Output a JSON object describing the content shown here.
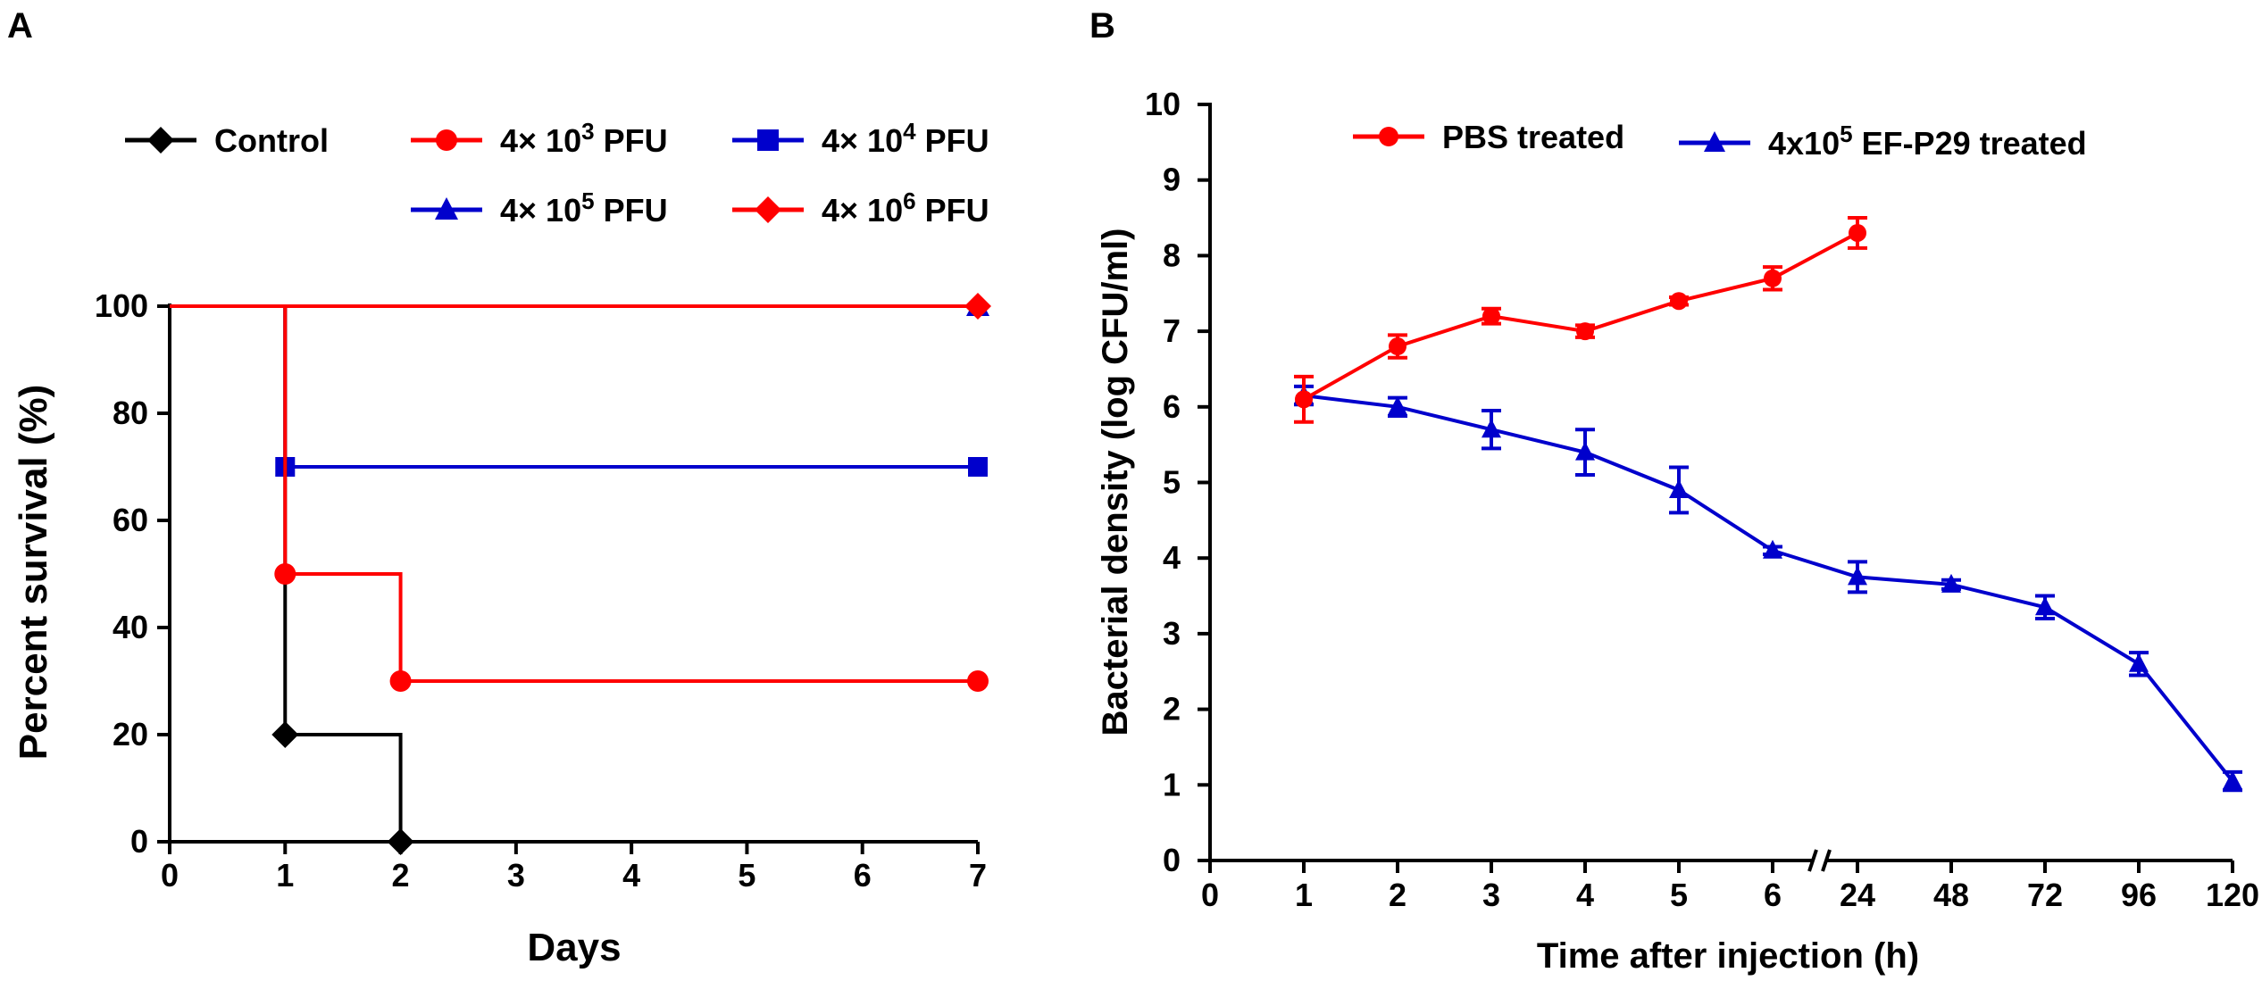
{
  "chart_data": [
    {
      "panel": "A",
      "type": "line",
      "subtype": "kaplan-meier-step",
      "xlabel": "Days",
      "ylabel": "Percent survival (%)",
      "xlim": [
        0,
        7
      ],
      "ylim": [
        0,
        100
      ],
      "x_ticks": [
        "0",
        "1",
        "2",
        "3",
        "4",
        "5",
        "6",
        "7"
      ],
      "y_ticks": [
        "0",
        "20",
        "40",
        "60",
        "80",
        "100"
      ],
      "legend_position": "top",
      "series": [
        {
          "name": "Control",
          "name_parts": [
            "Control",
            "",
            ""
          ],
          "color": "#000000",
          "marker": "diamond",
          "x": [
            0,
            1,
            2
          ],
          "y": [
            100,
            20,
            0
          ],
          "markers_at": [
            [
              1,
              20
            ],
            [
              2,
              0
            ]
          ]
        },
        {
          "name": "4× 10^3 PFU",
          "name_parts": [
            "4× 10",
            "3",
            " PFU"
          ],
          "color": "#ff0000",
          "marker": "circle",
          "x": [
            0,
            1,
            2,
            7
          ],
          "y": [
            100,
            50,
            30,
            30
          ],
          "markers_at": [
            [
              1,
              50
            ],
            [
              2,
              30
            ],
            [
              7,
              30
            ]
          ]
        },
        {
          "name": "4× 10^4 PFU",
          "name_parts": [
            "4× 10",
            "4",
            " PFU"
          ],
          "color": "#0000cc",
          "marker": "square",
          "x": [
            0,
            1,
            7
          ],
          "y": [
            100,
            70,
            70
          ],
          "markers_at": [
            [
              1,
              70
            ],
            [
              7,
              70
            ]
          ]
        },
        {
          "name": "4× 10^5 PFU",
          "name_parts": [
            "4× 10",
            "5",
            " PFU"
          ],
          "color": "#0000cc",
          "marker": "triangle",
          "x": [
            0,
            7
          ],
          "y": [
            100,
            100
          ],
          "markers_at": [
            [
              7,
              100
            ]
          ]
        },
        {
          "name": "4× 10^6 PFU",
          "name_parts": [
            "4× 10",
            "6",
            " PFU"
          ],
          "color": "#ff0000",
          "marker": "diamond",
          "x": [
            0,
            7
          ],
          "y": [
            100,
            100
          ],
          "markers_at": [
            [
              7,
              100
            ]
          ]
        }
      ]
    },
    {
      "panel": "B",
      "type": "line",
      "xlabel": "Time after injection (h)",
      "ylabel": "Bacterial density (log CFU/ml)",
      "ylim": [
        0,
        10
      ],
      "x_ticks": [
        "0",
        "1",
        "2",
        "3",
        "4",
        "5",
        "6",
        "24",
        "48",
        "72",
        "96",
        "120"
      ],
      "x_axis_break": "between 6 and 24",
      "y_ticks": [
        "0",
        "1",
        "2",
        "3",
        "4",
        "5",
        "6",
        "7",
        "8",
        "9",
        "10"
      ],
      "legend_position": "top",
      "series": [
        {
          "name": "PBS treated",
          "name_parts": [
            "PBS treated",
            "",
            ""
          ],
          "color": "#ff0000",
          "marker": "circle",
          "x": [
            "1",
            "2",
            "3",
            "4",
            "5",
            "6",
            "24"
          ],
          "y": [
            6.1,
            6.8,
            7.2,
            7.0,
            7.4,
            7.7,
            8.3
          ],
          "error": [
            0.3,
            0.15,
            0.1,
            0.08,
            0.05,
            0.15,
            0.2
          ]
        },
        {
          "name": "4x10^5 EF-P29 treated",
          "name_parts": [
            "4x10",
            "5",
            " EF-P29 treated"
          ],
          "color": "#0000cc",
          "marker": "triangle",
          "x": [
            "1",
            "2",
            "3",
            "4",
            "5",
            "6",
            "24",
            "48",
            "72",
            "96",
            "120"
          ],
          "y": [
            6.15,
            6.0,
            5.7,
            5.4,
            4.9,
            4.1,
            3.75,
            3.65,
            3.35,
            2.6,
            1.05
          ],
          "error": [
            0.12,
            0.12,
            0.25,
            0.3,
            0.3,
            0.05,
            0.2,
            0.06,
            0.15,
            0.15,
            0.12
          ]
        }
      ]
    }
  ],
  "panels": {
    "a_label": "A",
    "b_label": "B"
  }
}
